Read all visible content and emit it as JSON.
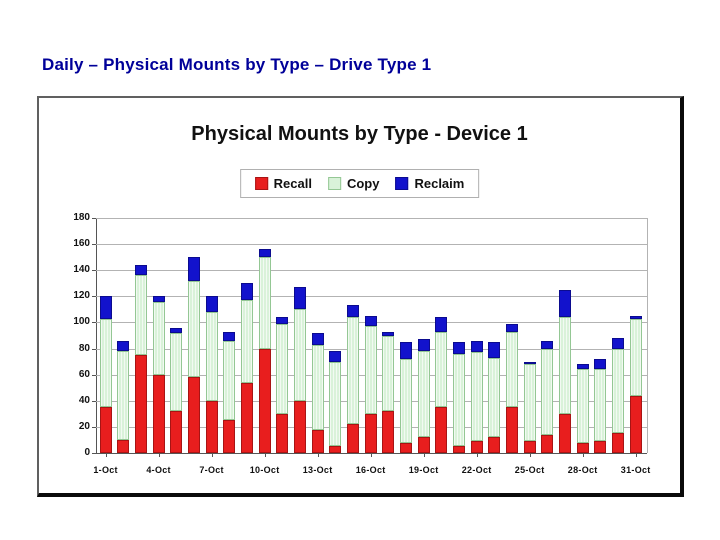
{
  "slide": {
    "title": "Daily – Physical Mounts by Type – Drive Type 1"
  },
  "chart_data": {
    "type": "bar",
    "stacked": true,
    "title": "Physical Mounts by Type - Device 1",
    "xlabel": "",
    "ylabel": "",
    "ylim": [
      0,
      180
    ],
    "ytick_step": 20,
    "grid": true,
    "legend_position": "top",
    "categories": [
      "1-Oct",
      "2-Oct",
      "3-Oct",
      "4-Oct",
      "5-Oct",
      "6-Oct",
      "7-Oct",
      "8-Oct",
      "9-Oct",
      "10-Oct",
      "11-Oct",
      "12-Oct",
      "13-Oct",
      "14-Oct",
      "15-Oct",
      "16-Oct",
      "17-Oct",
      "18-Oct",
      "19-Oct",
      "20-Oct",
      "21-Oct",
      "22-Oct",
      "23-Oct",
      "24-Oct",
      "25-Oct",
      "26-Oct",
      "27-Oct",
      "28-Oct",
      "29-Oct",
      "30-Oct",
      "31-Oct"
    ],
    "tick_step": 3,
    "tick_labels": [
      "1-Oct",
      "4-Oct",
      "7-Oct",
      "10-Oct",
      "13-Oct",
      "16-Oct",
      "19-Oct",
      "22-Oct",
      "25-Oct",
      "28-Oct",
      "31-Oct"
    ],
    "series": [
      {
        "name": "Recall",
        "color": "#e81e1e",
        "border": "#a81414",
        "values": [
          35,
          10,
          75,
          60,
          32,
          58,
          40,
          25,
          54,
          80,
          30,
          40,
          18,
          5,
          22,
          30,
          32,
          8,
          12,
          35,
          5,
          9,
          12,
          35,
          9,
          14,
          30,
          8,
          9,
          15,
          44
        ]
      },
      {
        "name": "Copy",
        "color": "#d9f2d9",
        "border": "#94c794",
        "values": [
          68,
          68,
          61,
          56,
          60,
          74,
          68,
          61,
          63,
          70,
          69,
          70,
          65,
          65,
          82,
          67,
          58,
          64,
          66,
          58,
          71,
          68,
          61,
          58,
          59,
          66,
          74,
          56,
          55,
          65,
          59
        ]
      },
      {
        "name": "Reclaim",
        "color": "#1212cc",
        "border": "#0b0b8f",
        "values": [
          17,
          8,
          8,
          4,
          4,
          18,
          12,
          7,
          13,
          6,
          5,
          17,
          9,
          8,
          9,
          8,
          3,
          13,
          9,
          11,
          9,
          9,
          12,
          6,
          2,
          6,
          21,
          4,
          8,
          8,
          2
        ]
      }
    ]
  },
  "colors": {
    "slide_title": "#000099",
    "grid": "#b3b3b3",
    "axis": "#555555",
    "box_border_light": "#606060",
    "box_border_dark": "#0a0a0a"
  }
}
